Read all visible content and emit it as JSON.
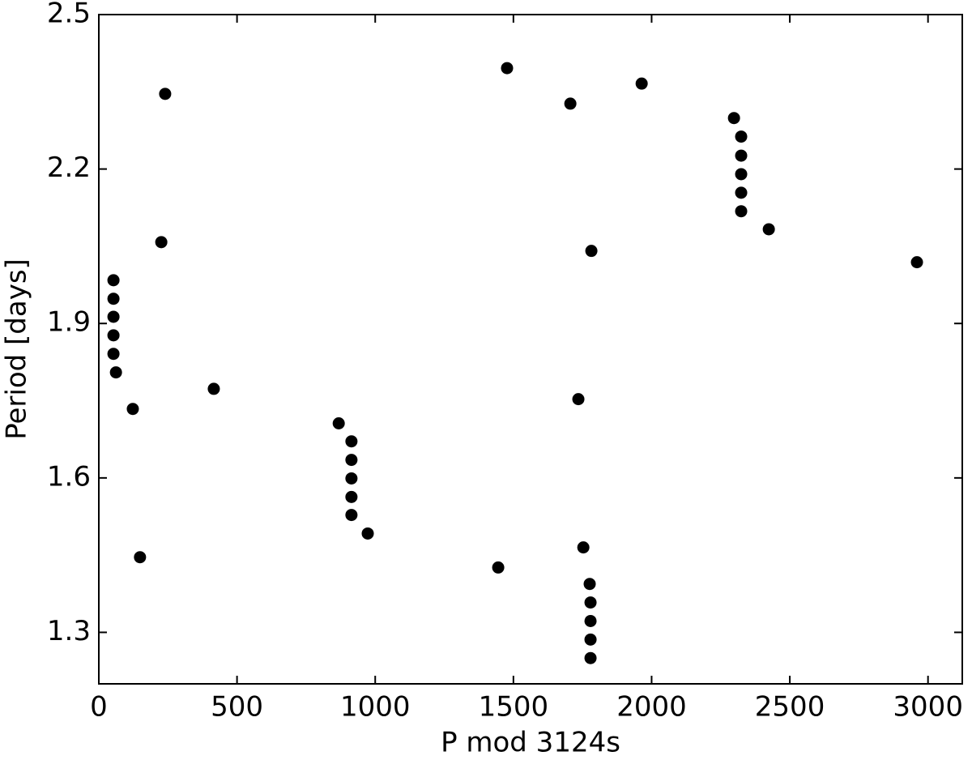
{
  "chart_data": {
    "type": "scatter",
    "xlabel": "P mod 3124s",
    "ylabel": "Period [days]",
    "xlim": [
      0,
      3124
    ],
    "ylim": [
      1.2,
      2.5
    ],
    "xticks": [
      0,
      500,
      1000,
      1500,
      2000,
      2500,
      3000
    ],
    "yticks": [
      1.3,
      1.6,
      1.9,
      2.2,
      2.5
    ],
    "grid": false,
    "series": [
      {
        "color": "#000000",
        "x": [
          53,
          53,
          53,
          53,
          53,
          62,
          123,
          149,
          226,
          240,
          416,
          868,
          914,
          914,
          914,
          914,
          914,
          973,
          1445,
          1477,
          1706,
          1735,
          1753,
          1776,
          1779,
          1779,
          1779,
          1779,
          1782,
          1964,
          2298,
          2324,
          2324,
          2324,
          2324,
          2324,
          2424,
          2960
        ],
        "values": [
          1.984,
          1.948,
          1.913,
          1.877,
          1.841,
          1.805,
          1.734,
          1.446,
          2.058,
          2.346,
          1.773,
          1.706,
          1.671,
          1.635,
          1.599,
          1.563,
          1.528,
          1.492,
          1.426,
          2.396,
          2.327,
          1.753,
          1.465,
          1.394,
          1.358,
          1.322,
          1.286,
          1.25,
          2.041,
          2.366,
          2.299,
          2.263,
          2.226,
          2.19,
          2.154,
          2.118,
          2.083,
          2.019
        ]
      }
    ]
  }
}
